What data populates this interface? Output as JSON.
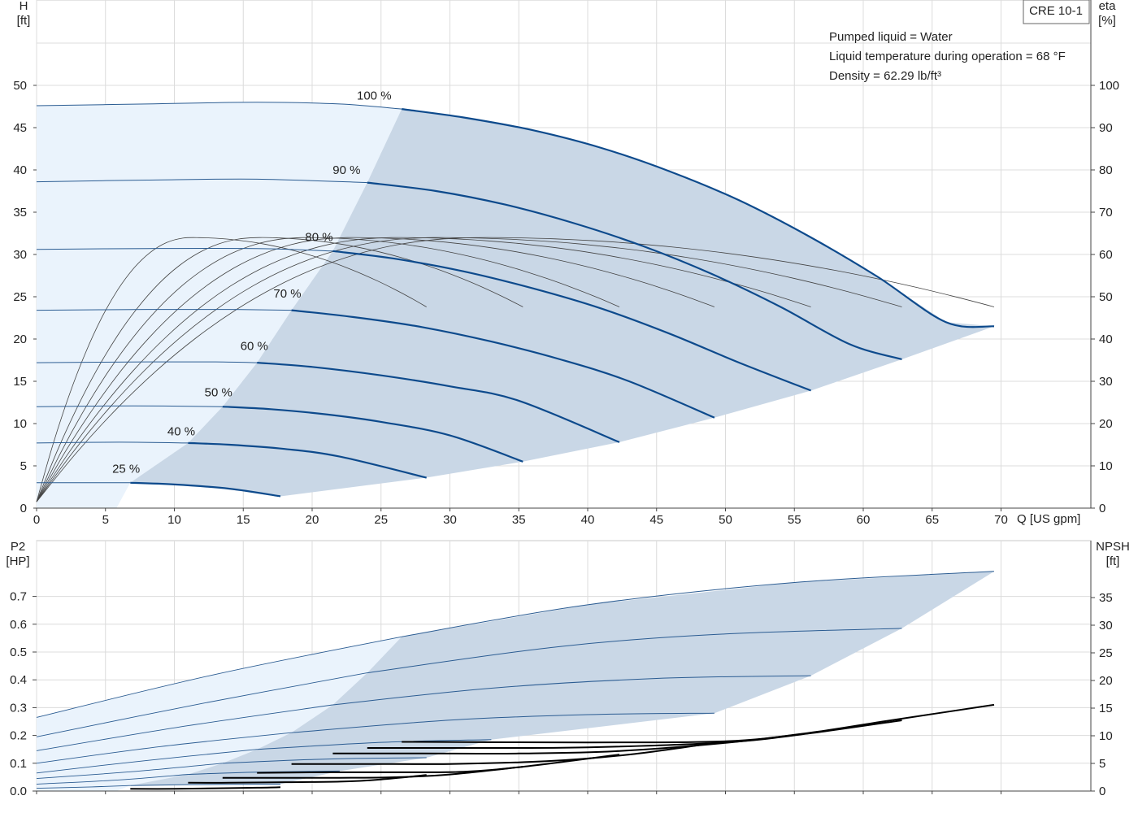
{
  "chart_data": [
    {
      "type": "line",
      "title": "CRE 10-1",
      "ylabel_left": "H",
      "ylabel_left_unit": "[ft]",
      "ylabel_right": "eta",
      "ylabel_right_unit": "[%]",
      "xlabel": "Q [US gpm]",
      "xlim": [
        0,
        77
      ],
      "ylim_left": [
        0,
        58
      ],
      "ylim_right": [
        0,
        116
      ],
      "x_ticks": [
        0,
        5,
        10,
        15,
        20,
        25,
        30,
        35,
        40,
        45,
        50,
        55,
        60,
        65,
        70
      ],
      "y_ticks_left": [
        0,
        5,
        10,
        15,
        20,
        25,
        30,
        35,
        40,
        45,
        50
      ],
      "y_ticks_right": [
        0,
        10,
        20,
        30,
        40,
        50,
        60,
        70,
        80,
        90,
        100
      ],
      "grid": true,
      "annotations": [
        "Pumped liquid = Water",
        "Liquid temperature during operation = 68 °F",
        "Density = 62.29 lb/ft³"
      ],
      "area_color": "#c9d7e6",
      "area_light_color": "#eaf3fc",
      "curve_color": "#0d4a8c",
      "series": [
        {
          "name": "100 %",
          "label_pos": [
            24.5,
            48.3
          ],
          "light": [
            [
              0,
              47.6
            ],
            [
              8,
              47.8
            ],
            [
              16,
              48.0
            ],
            [
              22,
              47.8
            ],
            [
              26.5,
              47.2
            ]
          ],
          "values": [
            [
              26.5,
              47.2
            ],
            [
              31,
              46.2
            ],
            [
              36,
              44.7
            ],
            [
              41,
              42.6
            ],
            [
              46,
              39.8
            ],
            [
              51,
              36.4
            ],
            [
              56,
              32.2
            ],
            [
              61,
              27.4
            ],
            [
              66,
              22.0
            ],
            [
              69.5,
              21.5
            ]
          ]
        },
        {
          "name": "90 %",
          "label_pos": [
            22.5,
            39.5
          ],
          "light": [
            [
              0,
              38.6
            ],
            [
              8,
              38.8
            ],
            [
              16,
              38.9
            ],
            [
              24,
              38.5
            ]
          ],
          "values": [
            [
              24,
              38.5
            ],
            [
              29,
              37.5
            ],
            [
              34,
              35.9
            ],
            [
              39,
              33.7
            ],
            [
              44,
              31.0
            ],
            [
              49,
              27.7
            ],
            [
              54,
              23.8
            ],
            [
              59,
              19.4
            ],
            [
              62.8,
              17.6
            ]
          ]
        },
        {
          "name": "80 %",
          "label_pos": [
            20.5,
            31.6
          ],
          "light": [
            [
              0,
              30.6
            ],
            [
              8,
              30.7
            ],
            [
              16,
              30.7
            ],
            [
              21.5,
              30.4
            ]
          ],
          "values": [
            [
              21.5,
              30.4
            ],
            [
              26,
              29.5
            ],
            [
              31,
              28.0
            ],
            [
              36,
              26.0
            ],
            [
              41,
              23.6
            ],
            [
              46,
              20.6
            ],
            [
              51,
              17.2
            ],
            [
              56.2,
              13.9
            ]
          ]
        },
        {
          "name": "70 %",
          "label_pos": [
            18.2,
            24.9
          ],
          "light": [
            [
              0,
              23.4
            ],
            [
              8,
              23.5
            ],
            [
              14,
              23.5
            ],
            [
              18.5,
              23.4
            ]
          ],
          "values": [
            [
              18.5,
              23.4
            ],
            [
              23,
              22.6
            ],
            [
              28,
              21.4
            ],
            [
              33,
              19.7
            ],
            [
              38,
              17.6
            ],
            [
              43,
              15.0
            ],
            [
              49.2,
              10.7
            ]
          ]
        },
        {
          "name": "60 %",
          "label_pos": [
            15.8,
            18.7
          ],
          "light": [
            [
              0,
              17.2
            ],
            [
              8,
              17.3
            ],
            [
              13,
              17.3
            ],
            [
              16,
              17.2
            ]
          ],
          "values": [
            [
              16,
              17.2
            ],
            [
              20,
              16.7
            ],
            [
              25,
              15.7
            ],
            [
              30,
              14.4
            ],
            [
              35,
              12.7
            ],
            [
              42.3,
              7.8
            ]
          ]
        },
        {
          "name": "50 %",
          "label_pos": [
            13.2,
            13.2
          ],
          "light": [
            [
              0,
              12.0
            ],
            [
              7,
              12.1
            ],
            [
              13.5,
              12.0
            ]
          ],
          "values": [
            [
              13.5,
              12.0
            ],
            [
              17,
              11.7
            ],
            [
              21,
              11.1
            ],
            [
              25,
              10.2
            ],
            [
              30,
              8.6
            ],
            [
              35.3,
              5.5
            ]
          ]
        },
        {
          "name": "40 %",
          "label_pos": [
            10.5,
            8.6
          ],
          "light": [
            [
              0,
              7.7
            ],
            [
              6,
              7.8
            ],
            [
              11,
              7.7
            ]
          ],
          "values": [
            [
              11,
              7.7
            ],
            [
              14,
              7.5
            ],
            [
              18,
              7.0
            ],
            [
              22,
              6.1
            ],
            [
              28.3,
              3.6
            ]
          ]
        },
        {
          "name": "25 %",
          "label_pos": [
            6.5,
            4.2
          ],
          "light": [
            [
              0,
              3.0
            ],
            [
              4,
              3.0
            ],
            [
              6.8,
              3.0
            ]
          ],
          "values": [
            [
              6.8,
              3.0
            ],
            [
              10,
              2.8
            ],
            [
              14,
              2.3
            ],
            [
              17.7,
              1.4
            ]
          ]
        }
      ],
      "eta_curves": [
        {
          "start": [
            0,
            1.5
          ],
          "peak": [
            11.3,
            64
          ],
          "end": [
            28.3,
            47.6
          ]
        },
        {
          "start": [
            0,
            1.5
          ],
          "peak": [
            16.2,
            64
          ],
          "end": [
            35.3,
            47.6
          ]
        },
        {
          "start": [
            0,
            1.5
          ],
          "peak": [
            19.6,
            64
          ],
          "end": [
            42.3,
            47.6
          ]
        },
        {
          "start": [
            0,
            1.5
          ],
          "peak": [
            22.9,
            64
          ],
          "end": [
            49.2,
            47.6
          ]
        },
        {
          "start": [
            0,
            1.5
          ],
          "peak": [
            26.2,
            64
          ],
          "end": [
            56.2,
            47.6
          ]
        },
        {
          "start": [
            0,
            1.5
          ],
          "peak": [
            29.2,
            64
          ],
          "end": [
            62.8,
            47.6
          ]
        },
        {
          "start": [
            0,
            1.5
          ],
          "peak": [
            32.5,
            64
          ],
          "end": [
            69.5,
            47.6
          ]
        }
      ]
    },
    {
      "type": "line",
      "ylabel_left": "P2",
      "ylabel_left_unit": "[HP]",
      "ylabel_right": "NPSH",
      "ylabel_right_unit": "[ft]",
      "xlim": [
        0,
        77
      ],
      "ylim_left": [
        0,
        0.8
      ],
      "ylim_right": [
        0,
        40
      ],
      "y_ticks_left": [
        0.0,
        0.1,
        0.2,
        0.3,
        0.4,
        0.5,
        0.6,
        0.7
      ],
      "y_ticks_left_labels": [
        "0.0",
        "0.1",
        "0.2",
        "0.3",
        "0.4",
        "0.5",
        "0.6",
        "0.7"
      ],
      "y_ticks_right": [
        0,
        5,
        10,
        15,
        20,
        25,
        30,
        35
      ],
      "grid": true,
      "power_curves": [
        {
          "name": "100 %",
          "light": [
            [
              0,
              0.265
            ],
            [
              13,
              0.42
            ],
            [
              26.5,
              0.555
            ]
          ],
          "values": [
            [
              26.5,
              0.555
            ],
            [
              40,
              0.67
            ],
            [
              55,
              0.75
            ],
            [
              69.5,
              0.79
            ]
          ]
        },
        {
          "name": "90 %",
          "light": [
            [
              0,
              0.195
            ],
            [
              12,
              0.315
            ],
            [
              24,
              0.425
            ]
          ],
          "values": [
            [
              24,
              0.425
            ],
            [
              38,
              0.52
            ],
            [
              50,
              0.565
            ],
            [
              62.8,
              0.585
            ]
          ]
        },
        {
          "name": "80 %",
          "light": [
            [
              0,
              0.145
            ],
            [
              11,
              0.235
            ],
            [
              21.5,
              0.31
            ]
          ],
          "values": [
            [
              21.5,
              0.31
            ],
            [
              33,
              0.37
            ],
            [
              45,
              0.405
            ],
            [
              56.2,
              0.415
            ]
          ]
        },
        {
          "name": "70 %",
          "light": [
            [
              0,
              0.1
            ],
            [
              9,
              0.16
            ],
            [
              18.5,
              0.21
            ]
          ],
          "values": [
            [
              18.5,
              0.21
            ],
            [
              30,
              0.255
            ],
            [
              40,
              0.275
            ],
            [
              49.2,
              0.28
            ]
          ]
        },
        {
          "name": "60 %",
          "light": [
            [
              0,
              0.065
            ],
            [
              8,
              0.11
            ],
            [
              16,
              0.15
            ]
          ],
          "values": [
            [
              16,
              0.15
            ],
            [
              25,
              0.175
            ],
            [
              33,
              0.185
            ]
          ]
        },
        {
          "name": "50 %",
          "light": [
            [
              0,
              0.045
            ],
            [
              7,
              0.07
            ],
            [
              13.5,
              0.1
            ]
          ],
          "values": [
            [
              13.5,
              0.1
            ],
            [
              21,
              0.115
            ],
            [
              28.3,
              0.12
            ]
          ]
        },
        {
          "name": "40 %",
          "light": [
            [
              0,
              0.025
            ],
            [
              6,
              0.04
            ],
            [
              11,
              0.06
            ]
          ],
          "values": [
            [
              11,
              0.06
            ],
            [
              16,
              0.068
            ],
            [
              22,
              0.072
            ]
          ]
        },
        {
          "name": "25 %",
          "light": [
            [
              0,
              0.01
            ],
            [
              4,
              0.015
            ],
            [
              6.8,
              0.02
            ]
          ],
          "values": [
            [
              6.8,
              0.02
            ],
            [
              11,
              0.023
            ],
            [
              17.7,
              0.025
            ]
          ]
        }
      ],
      "npsh_curves": [
        {
          "x": [
            26.5,
            40,
            50,
            56,
            62,
            69.5
          ],
          "y": [
            8.9,
            8.8,
            9.0,
            10.5,
            12.8,
            15.6
          ]
        },
        {
          "x": [
            24,
            33,
            40,
            50,
            56,
            62.8
          ],
          "y": [
            7.8,
            7.8,
            7.9,
            8.8,
            10.4,
            12.8
          ]
        },
        {
          "x": [
            21.5,
            28,
            35,
            42,
            50,
            56.2
          ],
          "y": [
            6.8,
            6.8,
            6.8,
            7.2,
            8.7,
            10.5
          ]
        },
        {
          "x": [
            18.5,
            24,
            30,
            37,
            43,
            49.2
          ],
          "y": [
            4.9,
            4.9,
            4.9,
            5.4,
            6.6,
            8.7
          ]
        },
        {
          "x": [
            16,
            21,
            26,
            31,
            35.3,
            42.3
          ],
          "y": [
            3.3,
            3.4,
            3.4,
            3.5,
            4.4,
            6.6
          ]
        },
        {
          "x": [
            13.5,
            18,
            22,
            26,
            30,
            35.3
          ],
          "y": [
            2.4,
            2.4,
            2.4,
            2.5,
            3.0,
            4.4
          ]
        },
        {
          "x": [
            11,
            14,
            18,
            22,
            25,
            28.3
          ],
          "y": [
            1.5,
            1.5,
            1.6,
            1.7,
            2.1,
            2.9
          ]
        },
        {
          "x": [
            6.8,
            10,
            13,
            16,
            17.7
          ],
          "y": [
            0.4,
            0.4,
            0.5,
            0.6,
            0.7
          ]
        }
      ]
    }
  ]
}
